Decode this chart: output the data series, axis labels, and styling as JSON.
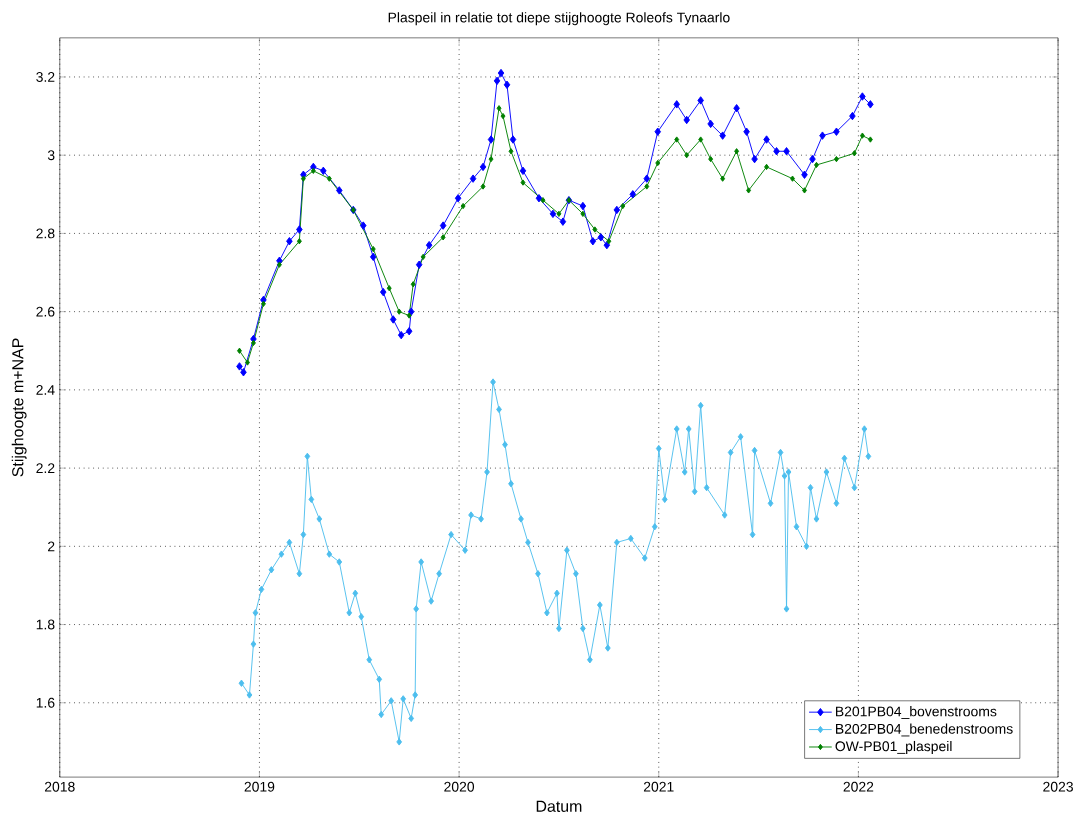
{
  "chart_data": {
    "type": "line",
    "title": "Plaspeil in relatie tot diepe stijghoogte Roleofs Tynaarlo",
    "xlabel": "Datum",
    "ylabel": "Stijghoogte m+NAP",
    "xlim": [
      2018,
      2023
    ],
    "xticks": [
      2018,
      2019,
      2020,
      2021,
      2022,
      2023
    ],
    "ylim": [
      1.41,
      3.3
    ],
    "yticks": [
      1.6,
      1.8,
      2,
      2.2,
      2.4,
      2.6,
      2.8,
      3,
      3.2
    ],
    "grid": true,
    "legend": "bottom right",
    "marker": "diamond",
    "line_style": "solid",
    "series": [
      {
        "name": "B201PB04_bovenstrooms",
        "color": "#0000ff",
        "x": [
          2018.9,
          2018.92,
          2018.97,
          2019.02,
          2019.1,
          2019.15,
          2019.2,
          2019.22,
          2019.27,
          2019.32,
          2019.4,
          2019.47,
          2019.52,
          2019.57,
          2019.62,
          2019.67,
          2019.71,
          2019.75,
          2019.76,
          2019.8,
          2019.85,
          2019.92,
          2019.995,
          2020.07,
          2020.12,
          2020.16,
          2020.19,
          2020.21,
          2020.24,
          2020.27,
          2020.32,
          2020.4,
          2020.47,
          2020.52,
          2020.55,
          2020.62,
          2020.67,
          2020.71,
          2020.74,
          2020.79,
          2020.87,
          2020.94,
          2020.995,
          2021.09,
          2021.14,
          2021.21,
          2021.26,
          2021.32,
          2021.39,
          2021.44,
          2021.48,
          2021.54,
          2021.59,
          2021.64,
          2021.73,
          2021.77,
          2021.82,
          2021.89,
          2021.97,
          2022.02,
          2022.06
        ],
        "values": [
          2.46,
          2.445,
          2.53,
          2.63,
          2.73,
          2.78,
          2.81,
          2.95,
          2.97,
          2.96,
          2.91,
          2.86,
          2.82,
          2.74,
          2.65,
          2.58,
          2.54,
          2.55,
          2.6,
          2.72,
          2.77,
          2.82,
          2.89,
          2.94,
          2.97,
          3.04,
          3.19,
          3.21,
          3.18,
          3.04,
          2.96,
          2.89,
          2.85,
          2.83,
          2.885,
          2.87,
          2.78,
          2.79,
          2.77,
          2.86,
          2.9,
          2.94,
          3.06,
          3.13,
          3.09,
          3.14,
          3.08,
          3.05,
          3.12,
          3.06,
          2.99,
          3.04,
          3.01,
          3.01,
          2.95,
          2.99,
          3.05,
          3.06,
          3.1,
          3.15,
          3.13
        ]
      },
      {
        "name": "B202PB04_benedenstrooms",
        "color": "#4dbeee",
        "x": [
          2018.91,
          2018.95,
          2018.97,
          2018.98,
          2019.01,
          2019.06,
          2019.11,
          2019.15,
          2019.2,
          2019.22,
          2019.24,
          2019.26,
          2019.3,
          2019.35,
          2019.4,
          2019.45,
          2019.48,
          2019.51,
          2019.55,
          2019.6,
          2019.61,
          2019.66,
          2019.7,
          2019.72,
          2019.76,
          2019.78,
          2019.785,
          2019.81,
          2019.86,
          2019.9,
          2019.96,
          2020.03,
          2020.06,
          2020.11,
          2020.14,
          2020.17,
          2020.2,
          2020.23,
          2020.26,
          2020.31,
          2020.345,
          2020.395,
          2020.44,
          2020.49,
          2020.5,
          2020.54,
          2020.585,
          2020.62,
          2020.655,
          2020.705,
          2020.745,
          2020.79,
          2020.86,
          2020.93,
          2020.98,
          2021.0,
          2021.03,
          2021.09,
          2021.13,
          2021.15,
          2021.18,
          2021.21,
          2021.24,
          2021.33,
          2021.36,
          2021.41,
          2021.47,
          2021.48,
          2021.56,
          2021.61,
          2021.63,
          2021.64,
          2021.65,
          2021.69,
          2021.74,
          2021.76,
          2021.79,
          2021.84,
          2021.89,
          2021.93,
          2021.98,
          2022.03,
          2022.05
        ],
        "values": [
          1.65,
          1.62,
          1.75,
          1.83,
          1.89,
          1.94,
          1.98,
          2.01,
          1.93,
          2.03,
          2.23,
          2.12,
          2.07,
          1.98,
          1.96,
          1.83,
          1.88,
          1.82,
          1.71,
          1.66,
          1.57,
          1.605,
          1.5,
          1.61,
          1.56,
          1.62,
          1.84,
          1.96,
          1.86,
          1.93,
          2.03,
          1.99,
          2.08,
          2.07,
          2.19,
          2.42,
          2.35,
          2.26,
          2.16,
          2.07,
          2.01,
          1.93,
          1.83,
          1.88,
          1.79,
          1.99,
          1.93,
          1.79,
          1.71,
          1.85,
          1.74,
          2.01,
          2.02,
          1.97,
          2.05,
          2.25,
          2.12,
          2.3,
          2.19,
          2.3,
          2.14,
          2.36,
          2.15,
          2.08,
          2.24,
          2.28,
          2.03,
          2.245,
          2.11,
          2.24,
          2.18,
          1.84,
          2.19,
          2.05,
          2.0,
          2.15,
          2.07,
          2.19,
          2.11,
          2.225,
          2.15,
          2.3,
          2.23
        ]
      },
      {
        "name": "OW-PB01_plaspeil",
        "color": "#008000",
        "x": [
          2018.9,
          2018.94,
          2018.97,
          2019.02,
          2019.1,
          2019.2,
          2019.22,
          2019.27,
          2019.35,
          2019.47,
          2019.57,
          2019.65,
          2019.7,
          2019.75,
          2019.77,
          2019.82,
          2019.92,
          2020.02,
          2020.12,
          2020.16,
          2020.2,
          2020.22,
          2020.26,
          2020.32,
          2020.42,
          2020.5,
          2020.55,
          2020.62,
          2020.68,
          2020.75,
          2020.82,
          2020.94,
          2020.995,
          2021.09,
          2021.14,
          2021.21,
          2021.26,
          2021.32,
          2021.39,
          2021.45,
          2021.54,
          2021.67,
          2021.73,
          2021.79,
          2021.89,
          2021.98,
          2022.02,
          2022.06
        ],
        "values": [
          2.5,
          2.47,
          2.52,
          2.62,
          2.72,
          2.78,
          2.94,
          2.96,
          2.94,
          2.86,
          2.76,
          2.66,
          2.6,
          2.59,
          2.67,
          2.74,
          2.79,
          2.87,
          2.92,
          2.99,
          3.12,
          3.1,
          3.01,
          2.93,
          2.885,
          2.85,
          2.885,
          2.85,
          2.81,
          2.78,
          2.87,
          2.92,
          2.98,
          3.04,
          3.0,
          3.04,
          2.99,
          2.94,
          3.01,
          2.91,
          2.97,
          2.94,
          2.91,
          2.975,
          2.99,
          3.005,
          3.05,
          3.04
        ]
      }
    ]
  }
}
